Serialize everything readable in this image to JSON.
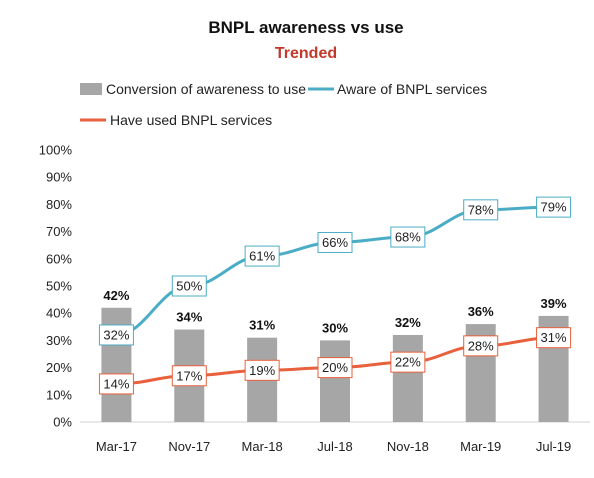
{
  "chart_data": {
    "type": "bar",
    "title": "BNPL awareness vs use",
    "subtitle": "Trended",
    "categories": [
      "Mar-17",
      "Nov-17",
      "Mar-18",
      "Jul-18",
      "Nov-18",
      "Mar-19",
      "Jul-19"
    ],
    "y_ticks": [
      "0%",
      "10%",
      "20%",
      "30%",
      "40%",
      "50%",
      "60%",
      "70%",
      "80%",
      "90%",
      "100%"
    ],
    "ylim": [
      0,
      100
    ],
    "xlabel": "",
    "ylabel": "",
    "grid": false,
    "legend_position": "top",
    "series": [
      {
        "name": "Conversion of awareness to use",
        "kind": "bar",
        "color": "#a6a6a6",
        "values": [
          42,
          34,
          31,
          30,
          32,
          36,
          39
        ],
        "labels": [
          "42%",
          "34%",
          "31%",
          "30%",
          "32%",
          "36%",
          "39%"
        ]
      },
      {
        "name": "Aware of BNPL services",
        "kind": "line",
        "color": "#4bacc6",
        "values": [
          32,
          50,
          61,
          66,
          68,
          78,
          79
        ],
        "labels": [
          "32%",
          "50%",
          "61%",
          "66%",
          "68%",
          "78%",
          "79%"
        ]
      },
      {
        "name": "Have used BNPL services",
        "kind": "line",
        "color": "#e8613c",
        "values": [
          14,
          17,
          19,
          20,
          22,
          28,
          31
        ],
        "labels": [
          "14%",
          "17%",
          "19%",
          "20%",
          "22%",
          "28%",
          "31%"
        ]
      }
    ],
    "title_color": "#111111",
    "subtitle_color": "#c0392b"
  }
}
